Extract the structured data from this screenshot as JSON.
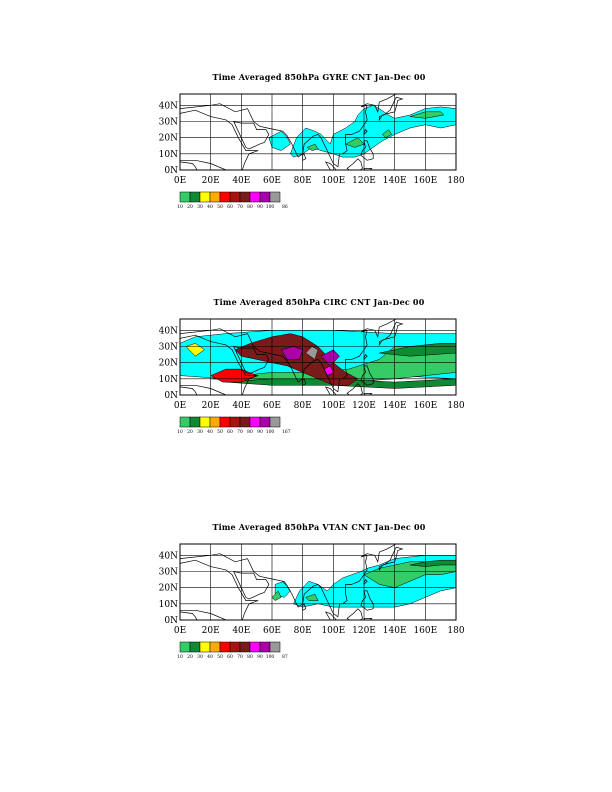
{
  "colors": {
    "cyan": "#00ffff",
    "light_green": "#33cc66",
    "dark_green": "#118833",
    "yellow": "#ffff00",
    "orange": "#ffaa00",
    "red": "#ff0000",
    "dark_red": "#aa1111",
    "brown": "#7a1a1a",
    "magenta": "#ff00ff",
    "purple": "#aa00aa",
    "grey": "#999999"
  },
  "chart_data": [
    {
      "type": "heatmap",
      "title": "Time Averaged 850hPa GYRE CNT Jan-Dec 00",
      "x_ticks": [
        "0E",
        "20E",
        "40E",
        "60E",
        "80E",
        "100E",
        "120E",
        "140E",
        "160E",
        "180"
      ],
      "y_ticks": [
        "0N",
        "10N",
        "20N",
        "30N",
        "40N"
      ],
      "xlim": [
        0,
        180
      ],
      "ylim": [
        0,
        47
      ],
      "grid": true,
      "legend": {
        "placement": "bottom-left",
        "labels": [
          "10",
          "20",
          "30",
          "40",
          "50",
          "60",
          "70",
          "80",
          "90",
          "100"
        ],
        "end_label": "86"
      }
    },
    {
      "type": "heatmap",
      "title": "Time Averaged 850hPa CIRC CNT Jan-Dec 00",
      "x_ticks": [
        "0E",
        "20E",
        "40E",
        "60E",
        "80E",
        "100E",
        "120E",
        "140E",
        "160E",
        "180"
      ],
      "y_ticks": [
        "0N",
        "10N",
        "20N",
        "30N",
        "40N"
      ],
      "xlim": [
        0,
        180
      ],
      "ylim": [
        0,
        47
      ],
      "grid": true,
      "legend": {
        "placement": "bottom-left",
        "labels": [
          "10",
          "20",
          "30",
          "40",
          "50",
          "60",
          "70",
          "80",
          "90",
          "100"
        ],
        "end_label": "167"
      }
    },
    {
      "type": "heatmap",
      "title": "Time Averaged 850hPa VTAN CNT Jan-Dec 00",
      "x_ticks": [
        "0E",
        "20E",
        "40E",
        "60E",
        "80E",
        "100E",
        "120E",
        "140E",
        "160E",
        "180"
      ],
      "y_ticks": [
        "0N",
        "10N",
        "20N",
        "30N",
        "40N"
      ],
      "xlim": [
        0,
        180
      ],
      "ylim": [
        0,
        47
      ],
      "grid": true,
      "legend": {
        "placement": "bottom-left",
        "labels": [
          "10",
          "20",
          "30",
          "40",
          "50",
          "60",
          "70",
          "80",
          "90",
          "100"
        ],
        "end_label": "87"
      }
    }
  ]
}
